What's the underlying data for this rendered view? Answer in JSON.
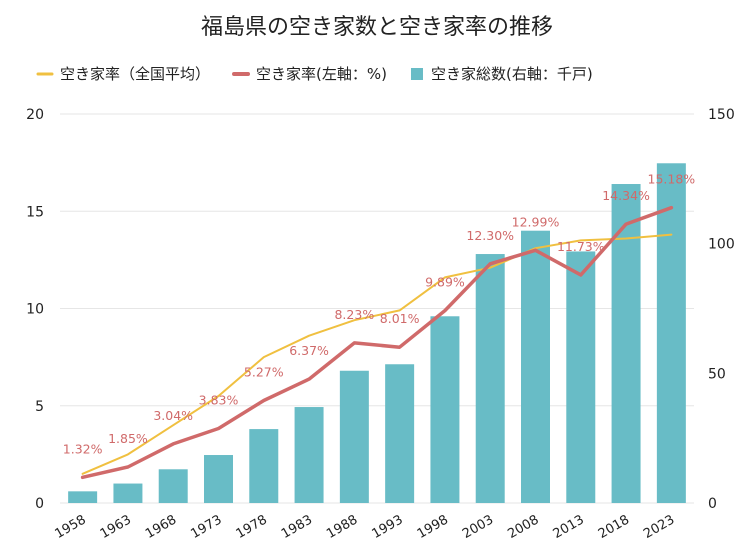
{
  "chart_data": {
    "type": "bar+line",
    "title": "福島県の空き家数と空き家率の推移",
    "legend_position": "top",
    "categories": [
      "1958",
      "1963",
      "1968",
      "1973",
      "1978",
      "1983",
      "1988",
      "1993",
      "1998",
      "2003",
      "2008",
      "2013",
      "2018",
      "2023"
    ],
    "series": [
      {
        "name": "空き家率（全国平均）",
        "type": "line",
        "axis": "left",
        "color": "#f0c040",
        "values": [
          1.5,
          2.5,
          4.0,
          5.5,
          7.5,
          8.6,
          9.4,
          9.9,
          11.6,
          12.1,
          13.1,
          13.5,
          13.6,
          13.8
        ]
      },
      {
        "name": "空き家率(左軸：%)",
        "type": "line",
        "axis": "left",
        "color": "#d06a6a",
        "values": [
          1.32,
          1.85,
          3.04,
          3.83,
          5.27,
          6.37,
          8.23,
          8.01,
          9.89,
          12.3,
          12.99,
          11.73,
          14.34,
          15.18
        ],
        "data_labels": [
          "1.32%",
          "1.85%",
          "3.04%",
          "3.83%",
          "5.27%",
          "6.37%",
          "8.23%",
          "8.01%",
          "9.89%",
          "12.30%",
          "12.99%",
          "11.73%",
          "14.34%",
          "15.18%"
        ]
      },
      {
        "name": "空き家総数(右軸：千戸)",
        "type": "bar",
        "axis": "right",
        "color": "#68bcc6",
        "values": [
          4.5,
          7.5,
          13,
          18.5,
          28.5,
          37,
          51,
          53.5,
          72,
          96,
          105,
          97,
          123,
          131
        ]
      }
    ],
    "left_axis": {
      "ylim": [
        0,
        20
      ],
      "ticks": [
        "0",
        "5",
        "10",
        "15",
        "20"
      ]
    },
    "right_axis": {
      "ylim": [
        0,
        150
      ],
      "ticks": [
        "0",
        "50",
        "100",
        "150"
      ]
    },
    "grid": true
  }
}
